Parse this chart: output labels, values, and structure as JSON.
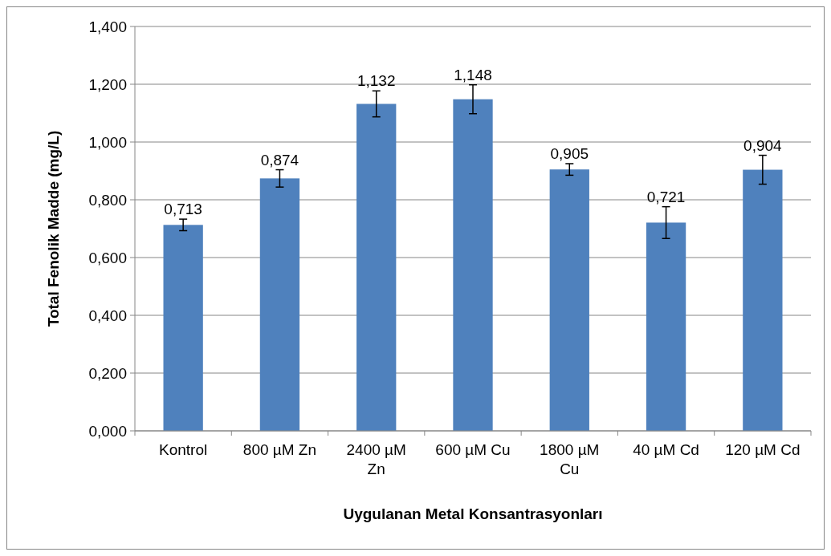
{
  "chart_data": {
    "type": "bar",
    "xlabel": "Uygulanan Metal Konsantrasyonları",
    "ylabel": "Total Fenolik Madde (mg/L)",
    "categories": [
      "Kontrol",
      "800 µM Zn",
      "2400 µM Zn",
      "600 µM Cu",
      "1800 µM Cu",
      "40 µM Cd",
      "120 µM Cd"
    ],
    "values": [
      0.713,
      0.874,
      1.132,
      1.148,
      0.905,
      0.721,
      0.904
    ],
    "value_labels": [
      "0,713",
      "0,874",
      "1,132",
      "1,148",
      "0,905",
      "0,721",
      "0,904"
    ],
    "errors": [
      0.02,
      0.03,
      0.045,
      0.05,
      0.02,
      0.055,
      0.05
    ],
    "color": "#4f81bd",
    "ylim": [
      0,
      1.4
    ],
    "yticks": [
      {
        "value": 0,
        "label": "0,000"
      },
      {
        "value": 0.2,
        "label": "0,200"
      },
      {
        "value": 0.4,
        "label": "0,400"
      },
      {
        "value": 0.6,
        "label": "0,600"
      },
      {
        "value": 0.8,
        "label": "0,800"
      },
      {
        "value": 1.0,
        "label": "1,000"
      },
      {
        "value": 1.2,
        "label": "1,200"
      },
      {
        "value": 1.4,
        "label": "1,400"
      }
    ],
    "grid": "y"
  }
}
